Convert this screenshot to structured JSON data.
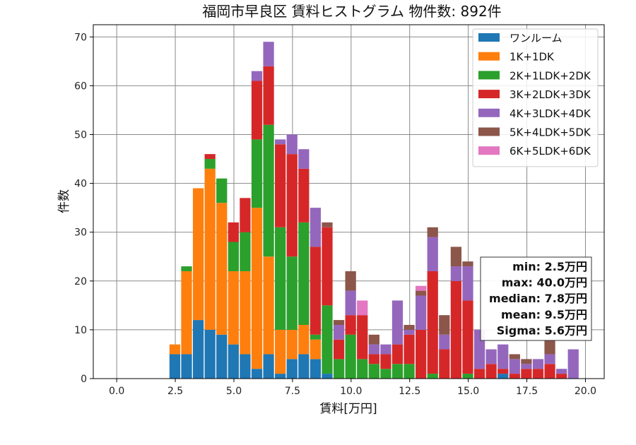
{
  "chart_data": {
    "type": "bar",
    "subtype": "stacked-histogram",
    "title": "福岡市早良区 賃料ヒストグラム 物件数: 892件",
    "xlabel": "賃料[万円]",
    "ylabel": "件数",
    "xlim": [
      -1.0,
      20.8
    ],
    "ylim": [
      0,
      72.5
    ],
    "bin_width": 0.5,
    "xticks": [
      0.0,
      2.5,
      5.0,
      7.5,
      10.0,
      12.5,
      15.0,
      17.5,
      20.0
    ],
    "xtick_labels": [
      "0.0",
      "2.5",
      "5.0",
      "7.5",
      "10.0",
      "12.5",
      "15.0",
      "17.5",
      "20.0"
    ],
    "yticks": [
      0,
      10,
      20,
      30,
      40,
      50,
      60,
      70
    ],
    "ytick_labels": [
      "0",
      "10",
      "20",
      "30",
      "40",
      "50",
      "60",
      "70"
    ],
    "grid": true,
    "legend_position": "top-right",
    "bin_starts": [
      2.25,
      2.75,
      3.25,
      3.75,
      4.25,
      4.75,
      5.25,
      5.75,
      6.25,
      6.75,
      7.25,
      7.75,
      8.25,
      8.75,
      9.25,
      9.75,
      10.25,
      10.75,
      11.25,
      11.75,
      12.25,
      12.75,
      13.25,
      13.75,
      14.25,
      14.75,
      15.25,
      15.75,
      16.25,
      16.75,
      17.25,
      17.75,
      18.25,
      18.75,
      19.25
    ],
    "series": [
      {
        "name": "ワンルーム",
        "color": "#1f77b4",
        "values": [
          5,
          5,
          12,
          10,
          9,
          7,
          5,
          2,
          5,
          1,
          4,
          5,
          4,
          1,
          0,
          0,
          0,
          0,
          0,
          0,
          0,
          0,
          0,
          0,
          0,
          0,
          0,
          0,
          1,
          0,
          0,
          0,
          0,
          0,
          0
        ]
      },
      {
        "name": "1K+1DK",
        "color": "#ff7f0e",
        "values": [
          2,
          17,
          27,
          33,
          27,
          15,
          17,
          33,
          20,
          9,
          6,
          6,
          4,
          0,
          0,
          0,
          0,
          0,
          0,
          0,
          0,
          0,
          0,
          0,
          0,
          0,
          0,
          0,
          0,
          0,
          0,
          0,
          0,
          0,
          0
        ]
      },
      {
        "name": "2K+1LDK+2DK",
        "color": "#2ca02c",
        "values": [
          0,
          1,
          0,
          2,
          5,
          6,
          8,
          14,
          27,
          21,
          15,
          21,
          1,
          14,
          4,
          9,
          4,
          3,
          2,
          3,
          3,
          0,
          1,
          0,
          0,
          1,
          0,
          0,
          0,
          0,
          0,
          0,
          0,
          0,
          0
        ]
      },
      {
        "name": "3K+2LDK+3DK",
        "color": "#d62728",
        "values": [
          0,
          0,
          0,
          1,
          0,
          4,
          7,
          12,
          12,
          17,
          21,
          11,
          18,
          16,
          4,
          4,
          9,
          2,
          3,
          4,
          6,
          10,
          21,
          6,
          20,
          15,
          2,
          3,
          1,
          1,
          2,
          2,
          3,
          1,
          0
        ]
      },
      {
        "name": "4K+3LDK+4DK",
        "color": "#9467bd",
        "values": [
          0,
          0,
          0,
          0,
          0,
          0,
          0,
          2,
          5,
          1,
          4,
          4,
          8,
          0,
          3,
          5,
          0,
          2,
          2,
          9,
          1,
          7,
          7,
          3,
          3,
          7,
          8,
          3,
          5,
          3,
          1,
          2,
          2,
          1,
          6
        ]
      },
      {
        "name": "5K+4LDK+5DK",
        "color": "#8c564b",
        "values": [
          0,
          0,
          0,
          0,
          0,
          0,
          0,
          0,
          0,
          0,
          0,
          0,
          0,
          1,
          1,
          4,
          0,
          2,
          0,
          0,
          1,
          1,
          2,
          4,
          4,
          1,
          0,
          0,
          0,
          1,
          1,
          0,
          3,
          0,
          0
        ]
      },
      {
        "name": "6K+5LDK+6DK",
        "color": "#e377c2",
        "values": [
          0,
          0,
          0,
          0,
          0,
          0,
          0,
          0,
          0,
          0,
          0,
          0,
          0,
          0,
          0,
          0,
          3,
          0,
          0,
          0,
          0,
          1,
          0,
          0,
          0,
          0,
          0,
          0,
          0,
          0,
          0,
          0,
          0,
          0,
          0
        ]
      }
    ],
    "stats_lines": [
      "min: 2.5万円",
      "max: 40.0万円",
      "median: 7.8万円",
      "mean: 9.5万円",
      "Sigma: 5.6万円"
    ]
  }
}
